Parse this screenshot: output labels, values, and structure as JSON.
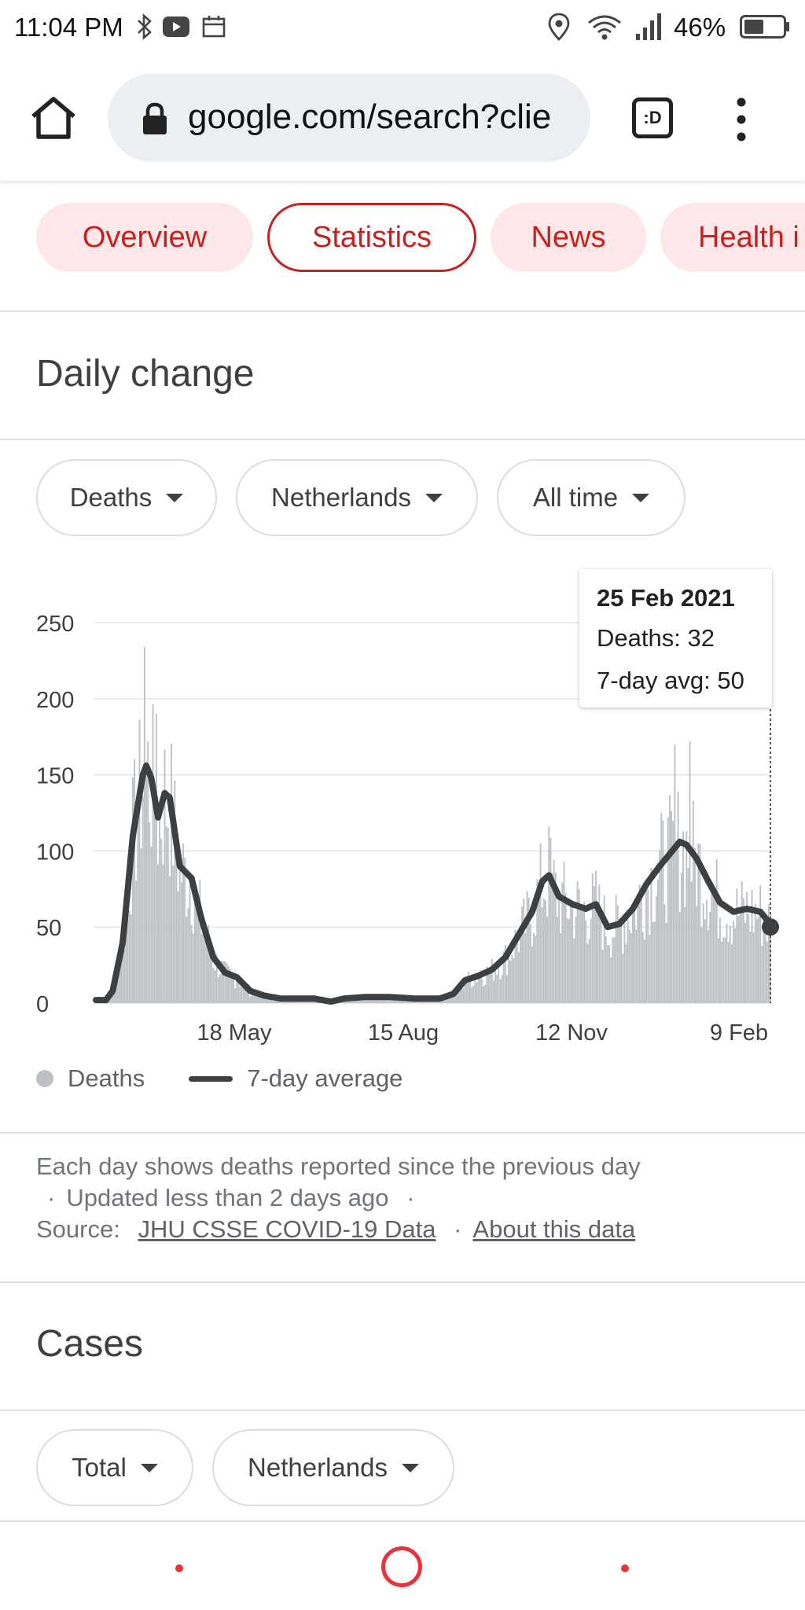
{
  "status_bar": {
    "time": "11:04 PM",
    "battery_percent": "46%",
    "icons": [
      "bluetooth-icon",
      "youtube-icon",
      "calendar-icon",
      "location-icon",
      "wifi-icon",
      "signal-icon",
      "battery-icon"
    ]
  },
  "browser": {
    "url": "google.com/search?clie",
    "tab_label": ":D",
    "icons": [
      "home-icon",
      "lock-icon",
      "menu-icon"
    ]
  },
  "tabs": [
    {
      "label": "Overview"
    },
    {
      "label": "Statistics",
      "active": true
    },
    {
      "label": "News"
    },
    {
      "label": "Health i"
    }
  ],
  "daily_change": {
    "title": "Daily change",
    "filters": [
      {
        "label": "Deaths"
      },
      {
        "label": "Netherlands"
      },
      {
        "label": "All time"
      }
    ],
    "tooltip": {
      "date": "25 Feb 2021",
      "deaths": "Deaths: 32",
      "avg": "7-day avg: 50"
    },
    "legend": {
      "bars_label": "Deaths",
      "line_label": "7-day average"
    },
    "note": {
      "text": "Each day shows deaths reported since the previous day",
      "updated": "Updated less than 2 days ago",
      "source_label": "Source:",
      "source_link": "JHU CSSE COVID-19 Data",
      "about_link": "About this data",
      "separator": "·"
    }
  },
  "cases": {
    "title": "Cases",
    "filters": [
      {
        "label": "Total"
      },
      {
        "label": "Netherlands"
      }
    ]
  },
  "colors": {
    "accent": "#c5221f",
    "chip_bg": "#fde7e9",
    "bar": "#bdc1c6",
    "line": "#3c4043",
    "nav": "#e8333a"
  },
  "chart_data": {
    "type": "bar",
    "y_ticks": [
      0,
      50,
      100,
      150,
      200,
      250
    ],
    "ylim": [
      0,
      250
    ],
    "x_tick_labels": [
      "18 May",
      "15 Aug",
      "12 Nov",
      "9 Feb"
    ],
    "series": [
      {
        "name": "Deaths",
        "type": "bar"
      },
      {
        "name": "7-day average",
        "type": "line"
      }
    ],
    "seven_day_average_keypoints": [
      {
        "day": 0,
        "value": 2
      },
      {
        "day": 6,
        "value": 2
      },
      {
        "day": 10,
        "value": 8
      },
      {
        "day": 16,
        "value": 40
      },
      {
        "day": 22,
        "value": 110
      },
      {
        "day": 28,
        "value": 150
      },
      {
        "day": 30,
        "value": 156
      },
      {
        "day": 33,
        "value": 148
      },
      {
        "day": 37,
        "value": 122
      },
      {
        "day": 41,
        "value": 138
      },
      {
        "day": 44,
        "value": 135
      },
      {
        "day": 50,
        "value": 90
      },
      {
        "day": 57,
        "value": 82
      },
      {
        "day": 63,
        "value": 55
      },
      {
        "day": 70,
        "value": 30
      },
      {
        "day": 77,
        "value": 20
      },
      {
        "day": 84,
        "value": 17
      },
      {
        "day": 92,
        "value": 8
      },
      {
        "day": 100,
        "value": 5
      },
      {
        "day": 110,
        "value": 3
      },
      {
        "day": 130,
        "value": 3
      },
      {
        "day": 140,
        "value": 1
      },
      {
        "day": 148,
        "value": 3
      },
      {
        "day": 160,
        "value": 4
      },
      {
        "day": 175,
        "value": 4
      },
      {
        "day": 190,
        "value": 3
      },
      {
        "day": 205,
        "value": 3
      },
      {
        "day": 213,
        "value": 6
      },
      {
        "day": 220,
        "value": 15
      },
      {
        "day": 228,
        "value": 18
      },
      {
        "day": 236,
        "value": 22
      },
      {
        "day": 244,
        "value": 30
      },
      {
        "day": 252,
        "value": 45
      },
      {
        "day": 260,
        "value": 60
      },
      {
        "day": 266,
        "value": 80
      },
      {
        "day": 270,
        "value": 84
      },
      {
        "day": 276,
        "value": 70
      },
      {
        "day": 284,
        "value": 65
      },
      {
        "day": 292,
        "value": 62
      },
      {
        "day": 298,
        "value": 65
      },
      {
        "day": 305,
        "value": 50
      },
      {
        "day": 312,
        "value": 52
      },
      {
        "day": 320,
        "value": 62
      },
      {
        "day": 328,
        "value": 78
      },
      {
        "day": 336,
        "value": 90
      },
      {
        "day": 342,
        "value": 98
      },
      {
        "day": 348,
        "value": 106
      },
      {
        "day": 352,
        "value": 104
      },
      {
        "day": 358,
        "value": 95
      },
      {
        "day": 365,
        "value": 80
      },
      {
        "day": 372,
        "value": 66
      },
      {
        "day": 380,
        "value": 60
      },
      {
        "day": 388,
        "value": 62
      },
      {
        "day": 396,
        "value": 60
      },
      {
        "day": 402,
        "value": 52
      }
    ],
    "highlighted_point": {
      "date": "25 Feb 2021",
      "deaths": 32,
      "avg": 50
    },
    "bar_peak_values": [
      {
        "day": 29,
        "value": 234
      },
      {
        "day": 36,
        "value": 190
      },
      {
        "day": 354,
        "value": 172
      },
      {
        "day": 345,
        "value": 170
      },
      {
        "day": 270,
        "value": 116
      }
    ]
  }
}
